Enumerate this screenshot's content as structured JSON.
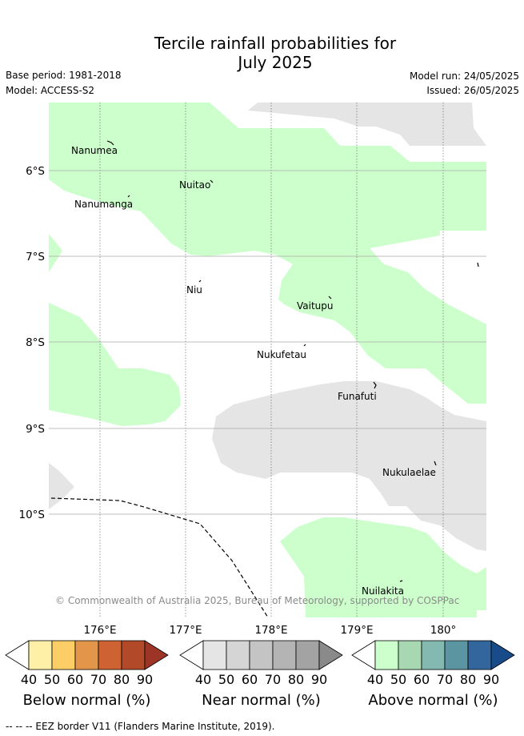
{
  "header": {
    "title_line1": "Tercile rainfall probabilities for",
    "title_line2": "July 2025",
    "base_period": "Base period: 1981-2018",
    "model": "Model: ACCESS-S2",
    "model_run": "Model run: 24/05/2025",
    "issued": "Issued: 26/05/2025"
  },
  "map": {
    "lat_labels": [
      "6°S",
      "7°S",
      "8°S",
      "9°S",
      "10°S"
    ],
    "lon_labels": [
      "176°E",
      "177°E",
      "178°E",
      "179°E",
      "180°"
    ],
    "places": {
      "nanumea": "Nanumea",
      "nuitao": "Nuitao",
      "nanumanga": "Nanumanga",
      "niu": "Niu",
      "vaitupu": "Vaitupu",
      "nukufetau": "Nukufetau",
      "funafuti": "Funafuti",
      "nukulaelae": "Nukulaelae",
      "nuilakita": "Nuilakita"
    },
    "copyright": "© Commonwealth of Australia 2025, Bureau of Meteorology, supported by COSPPac",
    "colors": {
      "above_normal_40": "#ccffcc",
      "near_normal_40": "#e5e5e5",
      "land_outline": "#000000"
    }
  },
  "legend": {
    "ticks": [
      "40",
      "50",
      "60",
      "70",
      "80",
      "90"
    ],
    "below": {
      "caption": "Below normal (%)",
      "colors": [
        "#ffffff",
        "#fff0a8",
        "#fece66",
        "#e3964a",
        "#cf6232",
        "#b24a29",
        "#9c3525"
      ]
    },
    "near": {
      "caption": "Near normal (%)",
      "colors": [
        "#ffffff",
        "#e5e5e5",
        "#d5d5d5",
        "#c4c4c4",
        "#b4b4b4",
        "#a3a3a3",
        "#8a8a8a"
      ]
    },
    "above": {
      "caption": "Above normal (%)",
      "colors": [
        "#ffffff",
        "#ccffcc",
        "#a8d8b2",
        "#84b9b2",
        "#5c95a2",
        "#33669c",
        "#174b8a"
      ]
    }
  },
  "footer": {
    "eez_note": "--  --  -- EEZ border V11 (Flanders Marine Institute, 2019)."
  }
}
